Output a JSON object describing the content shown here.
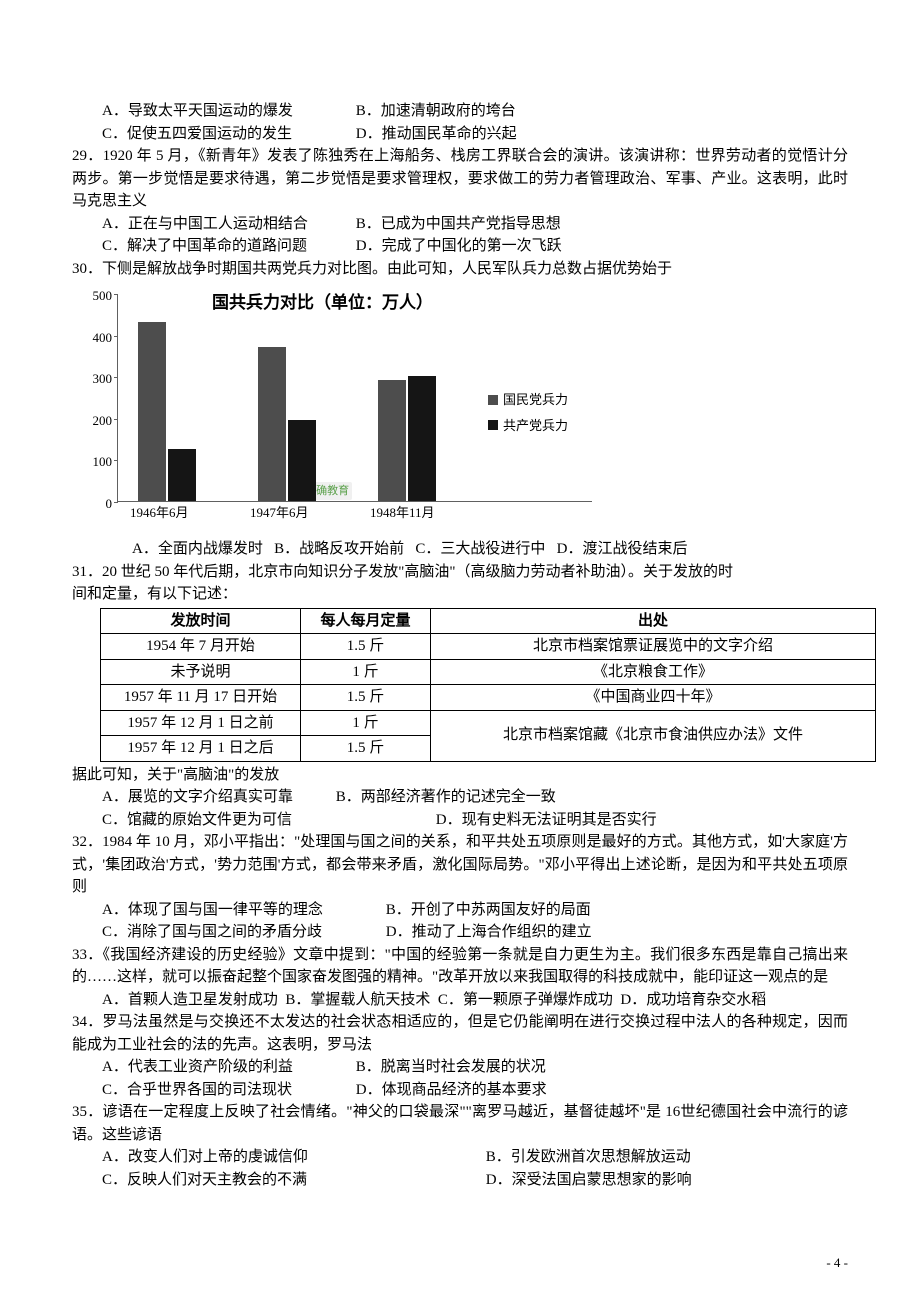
{
  "q28": {
    "optA": "A．导致太平天国运动的爆发",
    "optB": "B．加速清朝政府的垮台",
    "optC": "C．促使五四爱国运动的发生",
    "optD": "D．推动国民革命的兴起"
  },
  "q29": {
    "stem": "29．1920 年 5 月，《新青年》发表了陈独秀在上海船务、栈房工界联合会的演讲。该演讲称：世界劳动者的觉悟计分两步。第一步觉悟是要求待遇，第二步觉悟是要求管理权，要求做工的劳力者管理政治、军事、产业。这表明，此时马克思主义",
    "optA": "A．正在与中国工人运动相结合",
    "optB": "B．已成为中国共产党指导思想",
    "optC": "C．解决了中国革命的道路问题",
    "optD": "D．完成了中国化的第一次飞跃"
  },
  "q30": {
    "stem": "30．下侧是解放战争时期国共两党兵力对比图。由此可知，人民军队兵力总数占据优势始于",
    "optA": "A．全面内战爆发时",
    "optB": "B．战略反攻开始前",
    "optC": "C．三大战役进行中",
    "optD": "D．渡江战役结束后"
  },
  "chart": {
    "title": "国共兵力对比（单位：万人）",
    "ylim": [
      0,
      500
    ],
    "ytick_step": 100,
    "yticks": [
      0,
      100,
      200,
      300,
      400,
      500
    ],
    "categories": [
      "1946年6月",
      "1947年6月",
      "1948年11月"
    ],
    "series": [
      {
        "name": "国民党兵力",
        "color": "#4d4d4d",
        "values": [
          430,
          370,
          290
        ]
      },
      {
        "name": "共产党兵力",
        "color": "#151515",
        "values": [
          125,
          195,
          300
        ]
      }
    ],
    "watermark": "@正确教育",
    "legend_prefix": "■",
    "axis_color": "#606060",
    "background_color": "#ffffff",
    "label_fontsize": 13,
    "title_fontsize": 17
  },
  "q31": {
    "stem1": "31．20 世纪 50 年代后期，北京市向知识分子发放\"高脑油\"（高级脑力劳动者补助油）。关于发放的时",
    "stem2": "间和定量，有以下记述：",
    "headers": [
      "发放时间",
      "每人每月定量",
      "出处"
    ],
    "rows": [
      {
        "time": "1954 年 7 月开始",
        "amount": "1.5 斤",
        "source": "北京市档案馆票证展览中的文字介绍"
      },
      {
        "time": "未予说明",
        "amount": "1 斤",
        "source": "《北京粮食工作》"
      },
      {
        "time": "1957 年 11 月 17 日开始",
        "amount": "1.5 斤",
        "source": "《中国商业四十年》"
      },
      {
        "time": "1957 年 12 月 1 日之前",
        "amount": "1 斤",
        "source": "北京市档案馆藏《北京市食油供应办法》文件"
      },
      {
        "time": "1957 年 12 月 1 日之后",
        "amount": "1.5 斤",
        "source": ""
      }
    ],
    "followup": "据此可知，关于\"高脑油\"的发放",
    "optA": "A．展览的文字介绍真实可靠",
    "optB": "B．两部经济著作的记述完全一致",
    "optC": "C．馆藏的原始文件更为可信",
    "optD": "D．现有史料无法证明其是否实行"
  },
  "q32": {
    "stem": "32．1984 年 10 月，邓小平指出：\"处理国与国之间的关系，和平共处五项原则是最好的方式。其他方式，如'大家庭'方式，'集团政治'方式，'势力范围'方式，都会带来矛盾，激化国际局势。\"邓小平得出上述论断，是因为和平共处五项原则",
    "optA": "A．体现了国与国一律平等的理念",
    "optB": "B．开创了中苏两国友好的局面",
    "optC": "C．消除了国与国之间的矛盾分歧",
    "optD": "D．推动了上海合作组织的建立"
  },
  "q33": {
    "stem": "33．《我国经济建设的历史经验》文章中提到：\"中国的经验第一条就是自力更生为主。我们很多东西是靠自己搞出来的……这样，就可以振奋起整个国家奋发图强的精神。\"改革开放以来我国取得的科技成就中，能印证这一观点的是",
    "optA": "A．首颗人造卫星发射成功",
    "optB": "B．掌握载人航天技术",
    "optC": "C．第一颗原子弹爆炸成功",
    "optD": "D．成功培育杂交水稻"
  },
  "q34": {
    "stem": "34．罗马法虽然是与交换还不太发达的社会状态相适应的，但是它仍能阐明在进行交换过程中法人的各种规定，因而能成为工业社会的法的先声。这表明，罗马法",
    "optA": "A．代表工业资产阶级的利益",
    "optB": "B．脱离当时社会发展的状况",
    "optC": "C．合乎世界各国的司法现状",
    "optD": "D．体现商品经济的基本要求"
  },
  "q35": {
    "stem": "35．谚语在一定程度上反映了社会情绪。\"神父的口袋最深\"\"离罗马越近，基督徒越坏\"是 16世纪德国社会中流行的谚语。这些谚语",
    "optA": "A．改变人们对上帝的虔诚信仰",
    "optB": "B．引发欧洲首次思想解放运动",
    "optC": "C．反映人们对天主教会的不满",
    "optD": "D．深受法国启蒙思想家的影响"
  },
  "pageNum": "- 4 -"
}
